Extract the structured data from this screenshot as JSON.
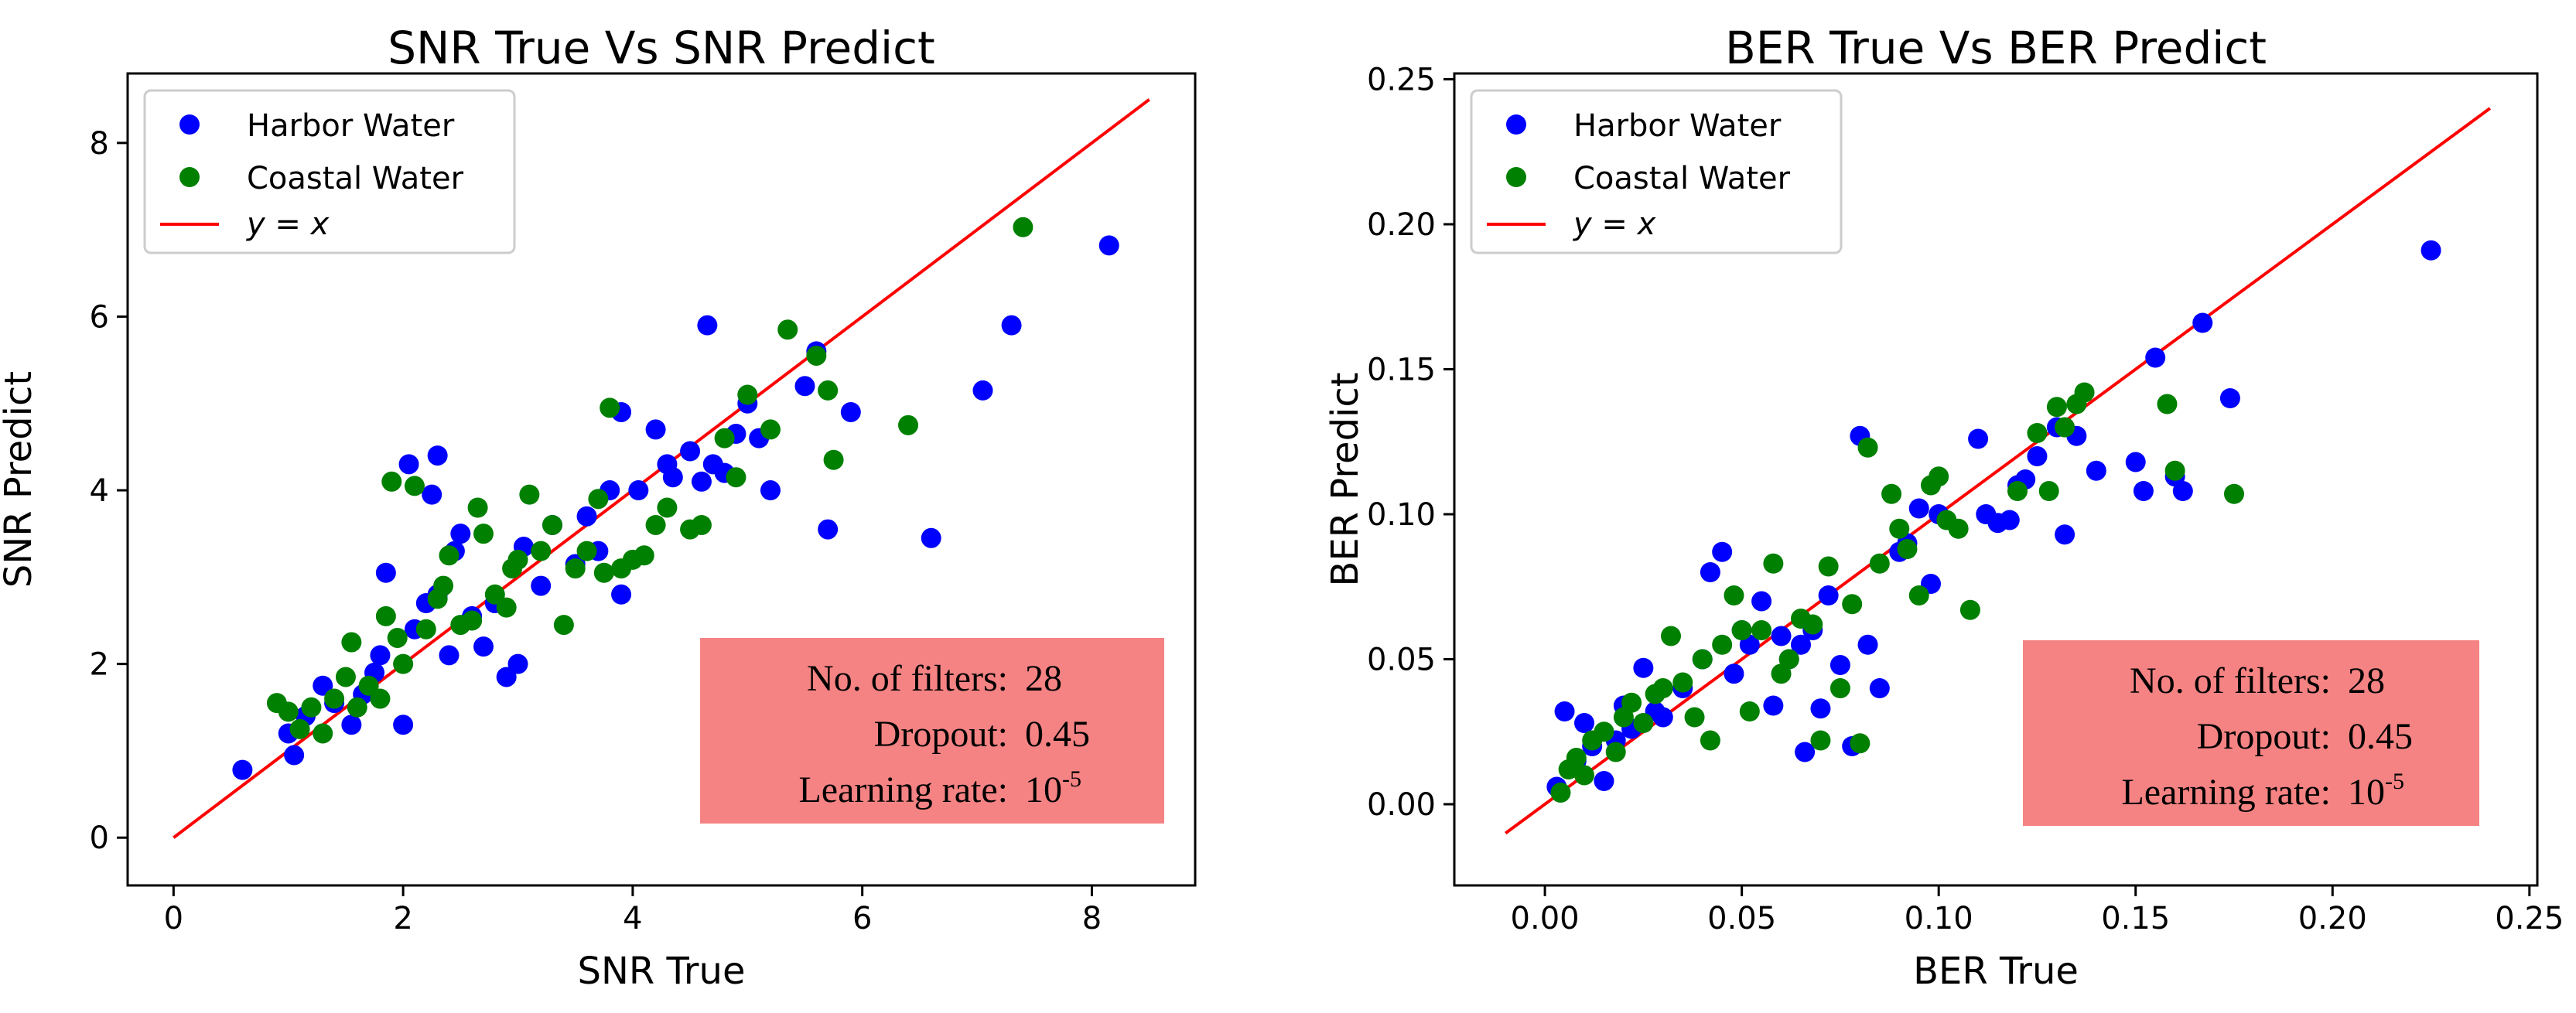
{
  "chart_data": [
    {
      "type": "scatter",
      "title": "SNR True Vs SNR Predict",
      "xlabel": "SNR True",
      "ylabel": "SNR Predict",
      "xlim": [
        -0.4,
        8.9
      ],
      "ylim": [
        -0.55,
        8.8
      ],
      "xticks": [
        0,
        2,
        4,
        6,
        8
      ],
      "yticks": [
        0,
        2,
        4,
        6,
        8
      ],
      "xtick_labels": [
        "0",
        "2",
        "4",
        "6",
        "8"
      ],
      "ytick_labels": [
        "0",
        "2",
        "4",
        "6",
        "8"
      ],
      "legend": {
        "placement": "top-left",
        "entries": [
          "Harbor Water",
          "Coastal Water",
          "y = x"
        ]
      },
      "annotation": {
        "placement": "bottom-right",
        "labels": [
          "No. of filters:",
          "Dropout:",
          "Learning rate:"
        ],
        "values": [
          "28",
          "0.45",
          "10"
        ],
        "exponent": "-5"
      },
      "colors": {
        "harbor": "#0000ff",
        "coastal": "#008000",
        "line": "#ff0000",
        "annotation_bg": "#f58383"
      },
      "line": {
        "name": "y = x",
        "x": [
          0,
          8.5
        ],
        "y": [
          0,
          8.5
        ]
      },
      "series": [
        {
          "name": "Harbor Water",
          "points": [
            [
              0.6,
              0.78
            ],
            [
              1.0,
              1.2
            ],
            [
              1.05,
              0.95
            ],
            [
              1.15,
              1.4
            ],
            [
              1.3,
              1.75
            ],
            [
              1.4,
              1.55
            ],
            [
              1.55,
              1.3
            ],
            [
              1.65,
              1.65
            ],
            [
              1.75,
              1.9
            ],
            [
              1.8,
              2.1
            ],
            [
              1.85,
              3.05
            ],
            [
              2.0,
              1.3
            ],
            [
              2.05,
              4.3
            ],
            [
              2.1,
              2.4
            ],
            [
              2.2,
              2.7
            ],
            [
              2.25,
              3.95
            ],
            [
              2.3,
              4.4
            ],
            [
              2.3,
              2.8
            ],
            [
              2.4,
              2.1
            ],
            [
              2.45,
              3.3
            ],
            [
              2.5,
              3.5
            ],
            [
              2.6,
              2.55
            ],
            [
              2.7,
              2.2
            ],
            [
              2.8,
              2.7
            ],
            [
              2.9,
              1.85
            ],
            [
              3.0,
              2.0
            ],
            [
              3.05,
              3.35
            ],
            [
              3.2,
              2.9
            ],
            [
              3.3,
              3.6
            ],
            [
              3.5,
              3.15
            ],
            [
              3.6,
              3.7
            ],
            [
              3.7,
              3.3
            ],
            [
              3.8,
              4.0
            ],
            [
              3.9,
              2.8
            ],
            [
              3.9,
              4.9
            ],
            [
              4.05,
              4.0
            ],
            [
              4.2,
              4.7
            ],
            [
              4.3,
              4.3
            ],
            [
              4.35,
              4.15
            ],
            [
              4.5,
              4.45
            ],
            [
              4.6,
              4.1
            ],
            [
              4.65,
              5.9
            ],
            [
              4.7,
              4.3
            ],
            [
              4.8,
              4.2
            ],
            [
              4.9,
              4.65
            ],
            [
              5.0,
              5.0
            ],
            [
              5.1,
              4.6
            ],
            [
              5.2,
              4.0
            ],
            [
              5.5,
              5.2
            ],
            [
              5.6,
              5.6
            ],
            [
              5.7,
              3.55
            ],
            [
              5.9,
              4.9
            ],
            [
              6.6,
              3.45
            ],
            [
              7.05,
              5.15
            ],
            [
              7.3,
              5.9
            ],
            [
              8.15,
              6.82
            ]
          ]
        },
        {
          "name": "Coastal Water",
          "points": [
            [
              0.9,
              1.55
            ],
            [
              1.0,
              1.45
            ],
            [
              1.1,
              1.25
            ],
            [
              1.2,
              1.5
            ],
            [
              1.3,
              1.2
            ],
            [
              1.4,
              1.6
            ],
            [
              1.5,
              1.85
            ],
            [
              1.55,
              2.25
            ],
            [
              1.6,
              1.5
            ],
            [
              1.7,
              1.75
            ],
            [
              1.8,
              1.6
            ],
            [
              1.85,
              2.55
            ],
            [
              1.9,
              4.1
            ],
            [
              1.95,
              2.3
            ],
            [
              2.0,
              2.0
            ],
            [
              2.1,
              4.05
            ],
            [
              2.2,
              2.4
            ],
            [
              2.3,
              2.75
            ],
            [
              2.35,
              2.9
            ],
            [
              2.4,
              3.25
            ],
            [
              2.5,
              2.45
            ],
            [
              2.6,
              2.5
            ],
            [
              2.65,
              3.8
            ],
            [
              2.7,
              3.5
            ],
            [
              2.8,
              2.8
            ],
            [
              2.9,
              2.65
            ],
            [
              2.95,
              3.1
            ],
            [
              3.0,
              3.2
            ],
            [
              3.1,
              3.95
            ],
            [
              3.2,
              3.3
            ],
            [
              3.3,
              3.6
            ],
            [
              3.4,
              2.45
            ],
            [
              3.5,
              3.1
            ],
            [
              3.6,
              3.3
            ],
            [
              3.7,
              3.9
            ],
            [
              3.75,
              3.05
            ],
            [
              3.8,
              4.95
            ],
            [
              3.9,
              3.1
            ],
            [
              4.0,
              3.2
            ],
            [
              4.1,
              3.25
            ],
            [
              4.2,
              3.6
            ],
            [
              4.3,
              3.8
            ],
            [
              4.5,
              3.55
            ],
            [
              4.6,
              3.6
            ],
            [
              4.8,
              4.6
            ],
            [
              4.9,
              4.15
            ],
            [
              5.0,
              5.1
            ],
            [
              5.2,
              4.7
            ],
            [
              5.35,
              5.85
            ],
            [
              5.6,
              5.55
            ],
            [
              5.7,
              5.15
            ],
            [
              5.75,
              4.35
            ],
            [
              6.4,
              4.75
            ],
            [
              7.4,
              7.03
            ]
          ]
        }
      ]
    },
    {
      "type": "scatter",
      "title": "BER True Vs BER Predict",
      "xlabel": "BER True",
      "ylabel": "BER Predict",
      "xlim": [
        -0.023,
        0.252
      ],
      "ylim": [
        -0.028,
        0.252
      ],
      "xticks": [
        0,
        0.05,
        0.1,
        0.15,
        0.2,
        0.25
      ],
      "yticks": [
        0,
        0.05,
        0.1,
        0.15,
        0.2,
        0.25
      ],
      "xtick_labels": [
        "0.00",
        "0.05",
        "0.10",
        "0.15",
        "0.20",
        "0.25"
      ],
      "ytick_labels": [
        "0.00",
        "0.05",
        "0.10",
        "0.15",
        "0.20",
        "0.25"
      ],
      "legend": {
        "placement": "top-left",
        "entries": [
          "Harbor Water",
          "Coastal Water",
          "y = x"
        ]
      },
      "annotation": {
        "placement": "bottom-right",
        "labels": [
          "No. of filters:",
          "Dropout:",
          "Learning rate:"
        ],
        "values": [
          "28",
          "0.45",
          "10"
        ],
        "exponent": "-5"
      },
      "colors": {
        "harbor": "#0000ff",
        "coastal": "#008000",
        "line": "#ff0000",
        "annotation_bg": "#f58383"
      },
      "line": {
        "name": "y = x",
        "x": [
          -0.01,
          0.24
        ],
        "y": [
          -0.01,
          0.24
        ]
      },
      "series": [
        {
          "name": "Harbor Water",
          "points": [
            [
              0.003,
              0.006
            ],
            [
              0.005,
              0.032
            ],
            [
              0.008,
              0.015
            ],
            [
              0.01,
              0.028
            ],
            [
              0.012,
              0.02
            ],
            [
              0.015,
              0.008
            ],
            [
              0.018,
              0.022
            ],
            [
              0.02,
              0.034
            ],
            [
              0.022,
              0.026
            ],
            [
              0.025,
              0.047
            ],
            [
              0.028,
              0.032
            ],
            [
              0.03,
              0.03
            ],
            [
              0.035,
              0.04
            ],
            [
              0.04,
              0.05
            ],
            [
              0.042,
              0.08
            ],
            [
              0.045,
              0.087
            ],
            [
              0.048,
              0.045
            ],
            [
              0.05,
              0.06
            ],
            [
              0.052,
              0.055
            ],
            [
              0.055,
              0.07
            ],
            [
              0.058,
              0.034
            ],
            [
              0.06,
              0.058
            ],
            [
              0.062,
              0.05
            ],
            [
              0.065,
              0.055
            ],
            [
              0.066,
              0.018
            ],
            [
              0.068,
              0.06
            ],
            [
              0.07,
              0.033
            ],
            [
              0.072,
              0.072
            ],
            [
              0.075,
              0.048
            ],
            [
              0.078,
              0.02
            ],
            [
              0.08,
              0.127
            ],
            [
              0.082,
              0.055
            ],
            [
              0.085,
              0.04
            ],
            [
              0.09,
              0.087
            ],
            [
              0.092,
              0.09
            ],
            [
              0.095,
              0.102
            ],
            [
              0.098,
              0.076
            ],
            [
              0.1,
              0.1
            ],
            [
              0.11,
              0.126
            ],
            [
              0.112,
              0.1
            ],
            [
              0.115,
              0.097
            ],
            [
              0.118,
              0.098
            ],
            [
              0.12,
              0.11
            ],
            [
              0.122,
              0.112
            ],
            [
              0.125,
              0.12
            ],
            [
              0.13,
              0.13
            ],
            [
              0.132,
              0.093
            ],
            [
              0.135,
              0.127
            ],
            [
              0.14,
              0.115
            ],
            [
              0.15,
              0.118
            ],
            [
              0.152,
              0.108
            ],
            [
              0.155,
              0.154
            ],
            [
              0.16,
              0.113
            ],
            [
              0.162,
              0.108
            ],
            [
              0.167,
              0.166
            ],
            [
              0.174,
              0.14
            ],
            [
              0.225,
              0.191
            ]
          ]
        },
        {
          "name": "Coastal Water",
          "points": [
            [
              0.004,
              0.004
            ],
            [
              0.006,
              0.012
            ],
            [
              0.008,
              0.016
            ],
            [
              0.01,
              0.01
            ],
            [
              0.012,
              0.022
            ],
            [
              0.015,
              0.025
            ],
            [
              0.018,
              0.018
            ],
            [
              0.02,
              0.03
            ],
            [
              0.022,
              0.035
            ],
            [
              0.025,
              0.028
            ],
            [
              0.028,
              0.038
            ],
            [
              0.03,
              0.04
            ],
            [
              0.032,
              0.058
            ],
            [
              0.035,
              0.042
            ],
            [
              0.038,
              0.03
            ],
            [
              0.04,
              0.05
            ],
            [
              0.042,
              0.022
            ],
            [
              0.045,
              0.055
            ],
            [
              0.048,
              0.072
            ],
            [
              0.05,
              0.06
            ],
            [
              0.052,
              0.032
            ],
            [
              0.055,
              0.06
            ],
            [
              0.058,
              0.083
            ],
            [
              0.06,
              0.045
            ],
            [
              0.062,
              0.05
            ],
            [
              0.065,
              0.064
            ],
            [
              0.068,
              0.062
            ],
            [
              0.07,
              0.022
            ],
            [
              0.072,
              0.082
            ],
            [
              0.075,
              0.04
            ],
            [
              0.078,
              0.069
            ],
            [
              0.08,
              0.021
            ],
            [
              0.082,
              0.123
            ],
            [
              0.085,
              0.083
            ],
            [
              0.088,
              0.107
            ],
            [
              0.09,
              0.095
            ],
            [
              0.092,
              0.088
            ],
            [
              0.095,
              0.072
            ],
            [
              0.098,
              0.11
            ],
            [
              0.1,
              0.113
            ],
            [
              0.102,
              0.098
            ],
            [
              0.105,
              0.095
            ],
            [
              0.108,
              0.067
            ],
            [
              0.12,
              0.108
            ],
            [
              0.125,
              0.128
            ],
            [
              0.128,
              0.108
            ],
            [
              0.13,
              0.137
            ],
            [
              0.132,
              0.13
            ],
            [
              0.135,
              0.138
            ],
            [
              0.137,
              0.142
            ],
            [
              0.158,
              0.138
            ],
            [
              0.16,
              0.115
            ],
            [
              0.175,
              0.107
            ]
          ]
        }
      ]
    }
  ]
}
